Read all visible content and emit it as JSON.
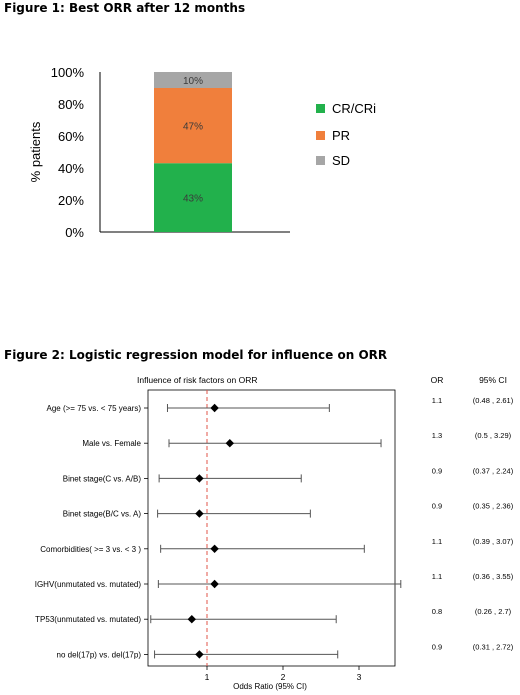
{
  "figure1": {
    "title": "Figure 1: Best ORR after 12 months",
    "chart_data": {
      "type": "bar",
      "stacked": true,
      "categories": [
        ""
      ],
      "ylabel": "% patients",
      "ylim": [
        0,
        100
      ],
      "yticks": [
        "0%",
        "20%",
        "40%",
        "60%",
        "80%",
        "100%"
      ],
      "legend_position": "right",
      "series": [
        {
          "name": "CR/CRi",
          "values": [
            43
          ],
          "label": "43%",
          "color": "#22b14c"
        },
        {
          "name": "PR",
          "values": [
            47
          ],
          "label": "47%",
          "color": "#f07f3c"
        },
        {
          "name": "SD",
          "values": [
            10
          ],
          "label": "10%",
          "color": "#a6a6a6"
        }
      ]
    }
  },
  "figure2": {
    "title": "Figure 2: Logistic regression model for influence on ORR",
    "chart_data": {
      "type": "scatter",
      "subtype": "forest",
      "title": "Influence of risk factors on ORR",
      "xlabel": "Odds Ratio (95% CI)",
      "xlim": [
        0.35,
        3.95
      ],
      "xticks": [
        "1",
        "2",
        "3"
      ],
      "reference_line": 1,
      "col_or_header": "OR",
      "col_ci_header": "95% CI",
      "rows": [
        {
          "label": "Age (>= 75 vs. < 75 years)",
          "or": 1.1,
          "lo": 0.48,
          "hi": 2.61,
          "or_text": "1.1",
          "ci_text": "(0.48 , 2.61)"
        },
        {
          "label": "Male vs. Female",
          "or": 1.3,
          "lo": 0.5,
          "hi": 3.29,
          "or_text": "1.3",
          "ci_text": "(0.5 , 3.29)"
        },
        {
          "label": "Binet stage(C vs. A/B)",
          "or": 0.9,
          "lo": 0.37,
          "hi": 2.24,
          "or_text": "0.9",
          "ci_text": "(0.37 , 2.24)"
        },
        {
          "label": "Binet stage(B/C vs. A)",
          "or": 0.9,
          "lo": 0.35,
          "hi": 2.36,
          "or_text": "0.9",
          "ci_text": "(0.35 , 2.36)"
        },
        {
          "label": "Comorbidities( >= 3 vs. < 3 )",
          "or": 1.1,
          "lo": 0.39,
          "hi": 3.07,
          "or_text": "1.1",
          "ci_text": "(0.39 , 3.07)"
        },
        {
          "label": "IGHV(unmutated vs. mutated)",
          "or": 1.1,
          "lo": 0.36,
          "hi": 3.55,
          "or_text": "1.1",
          "ci_text": "(0.36 , 3.55)"
        },
        {
          "label": "TP53(unmutated vs. mutated)",
          "or": 0.8,
          "lo": 0.26,
          "hi": 2.7,
          "or_text": "0.8",
          "ci_text": "(0.26 , 2.7)"
        },
        {
          "label": "no del(17p) vs. del(17p)",
          "or": 0.9,
          "lo": 0.31,
          "hi": 2.72,
          "or_text": "0.9",
          "ci_text": "(0.31 , 2.72)"
        }
      ]
    }
  }
}
